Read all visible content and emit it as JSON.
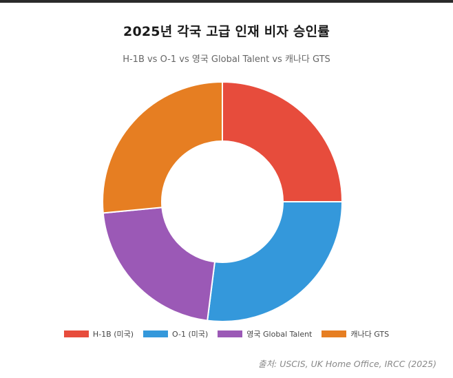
{
  "chart_data": {
    "type": "pie",
    "variant": "doughnut",
    "title": "2025년 각국 고급 인재 비자 승인률",
    "subtitle": "H-1B vs O-1 vs 영국 Global Talent vs 캐나다 GTS",
    "categories": [
      "H-1B (미국)",
      "O-1 (미국)",
      "영국 Global Talent",
      "캐나다 GTS"
    ],
    "values": [
      25,
      27,
      21.5,
      26.5
    ],
    "colors": [
      "#e74c3c",
      "#3498db",
      "#9b59b6",
      "#e67e22"
    ],
    "legend": "bottom",
    "source": "출처: USCIS, UK Home Office, IRCC (2025)"
  }
}
